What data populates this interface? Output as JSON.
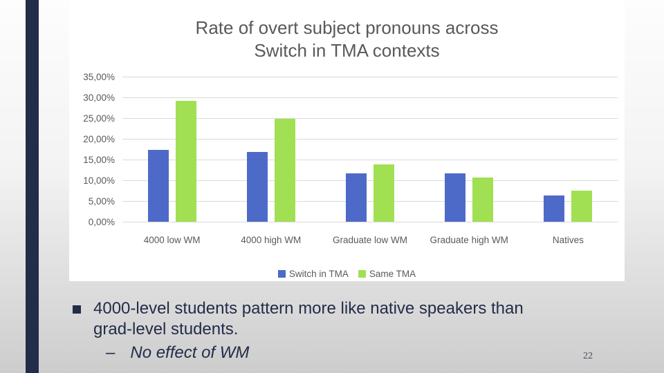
{
  "slide": {
    "page_number": "22",
    "accent_color": "#232C48"
  },
  "chart": {
    "title_line1": "Rate of overt subject pronouns across",
    "title_line2": "Switch in TMA contexts"
  },
  "chart_data": {
    "type": "bar",
    "title": "Rate of overt subject pronouns across Switch in TMA contexts",
    "categories": [
      "4000 low WM",
      "4000 high WM",
      "Graduate low WM",
      "Graduate high WM",
      "Natives"
    ],
    "series": [
      {
        "name": "Switch in TMA",
        "color": "#4E6AC8",
        "values": [
          17.4,
          16.8,
          11.6,
          11.7,
          6.4
        ]
      },
      {
        "name": "Same TMA",
        "color": "#A1E052",
        "values": [
          29.2,
          24.8,
          13.8,
          10.6,
          7.5
        ]
      }
    ],
    "ylim": [
      0,
      35
    ],
    "ytick_step": 5,
    "ytick_labels": [
      "0,00%",
      "5,00%",
      "10,00%",
      "15,00%",
      "20,00%",
      "25,00%",
      "30,00%",
      "35,00%"
    ],
    "grid": true,
    "legend_position": "bottom",
    "value_format": "percent_comma_decimal"
  },
  "body": {
    "bullet1": "4000-level students pattern more like native speakers than grad-level students.",
    "sub_bullet_dash": "–",
    "sub_bullet": "No effect of WM"
  }
}
